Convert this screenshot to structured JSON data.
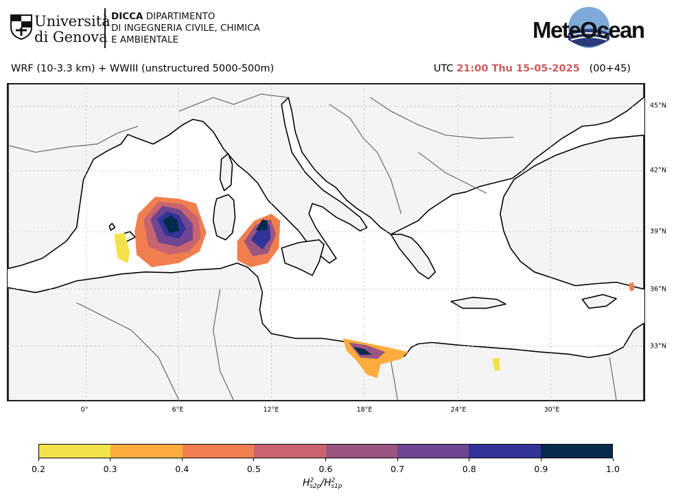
{
  "header": {
    "university_line1": "Università",
    "university_line2": "di Genova",
    "dept_abbr": "DICCA",
    "dept_line1_rest": " DIPARTIMENTO",
    "dept_line2": "DI INGEGNERIA CIVILE, CHIMICA",
    "dept_line3": "E AMBIENTALE",
    "brand": "MeteOcean"
  },
  "title": {
    "model": "WRF (10-3.3 km) + WWIII (unstructured 5000-500m)",
    "utc_label": "UTC",
    "time": "21:00 Thu 15-05-2025",
    "lead": "(00+45)"
  },
  "map": {
    "x_ticks": [
      "0°",
      "6°E",
      "12°E",
      "18°E",
      "24°E",
      "30°E"
    ],
    "y_ticks": [
      "45°N",
      "42°N",
      "39°N",
      "36°N",
      "33°N"
    ]
  },
  "colorbar": {
    "ticks": [
      "0.2",
      "0.3",
      "0.4",
      "0.5",
      "0.6",
      "0.7",
      "0.8",
      "0.9",
      "1.0"
    ],
    "colors": [
      "#f3e34a",
      "#fcad3d",
      "#f07f4f",
      "#c86470",
      "#9c5580",
      "#6e4691",
      "#343399",
      "#042b4e"
    ],
    "label_base": "H",
    "label_num_sub": "s2p",
    "label_den_sub": "s1p",
    "label_exp": "2"
  }
}
